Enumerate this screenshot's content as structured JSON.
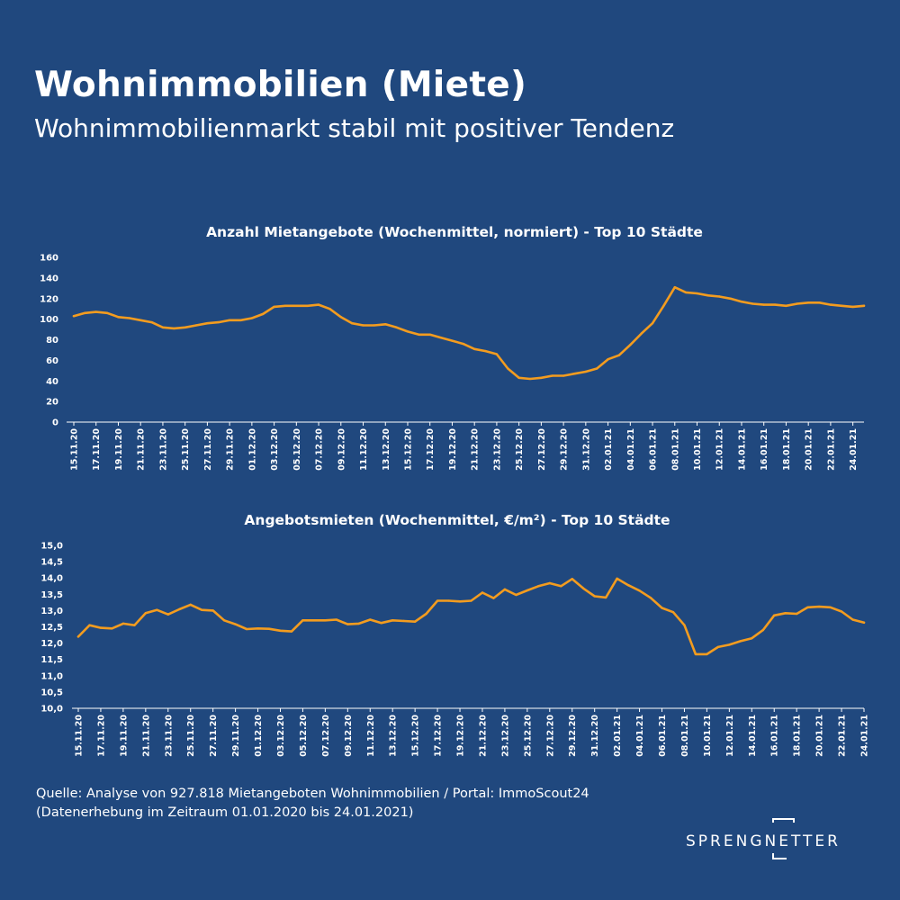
{
  "header": {
    "title": "Wohnimmobilien (Miete)",
    "subtitle": "Wohnimmobilienmarkt stabil mit positiver Tendenz"
  },
  "footer": {
    "source_line1": "Quelle: Analyse von 927.818 Mietangeboten Wohnimmobilien / Portal: ImmoScout24",
    "source_line2": "(Datenerhebung im Zeitraum 01.01.2020 bis  24.01.2021)"
  },
  "logo": {
    "text": "SPRENGNETTER"
  },
  "colors": {
    "background": "#20487e",
    "line": "#f39c1f",
    "text": "#ffffff"
  },
  "chart_data": [
    {
      "type": "line",
      "title": "Anzahl Mietangebote (Wochenmittel, normiert) - Top 10 Städte",
      "ylim": [
        0,
        160
      ],
      "yticks": [
        "0",
        "20",
        "40",
        "60",
        "80",
        "100",
        "120",
        "140",
        "160"
      ],
      "ytick_values": [
        0,
        20,
        40,
        60,
        80,
        100,
        120,
        140,
        160
      ],
      "xticks": [
        "15.11.20",
        "17.11.20",
        "19.11.20",
        "21.11.20",
        "23.11.20",
        "25.11.20",
        "27.11.20",
        "29.11.20",
        "01.12.20",
        "03.12.20",
        "05.12.20",
        "07.12.20",
        "09.12.20",
        "11.12.20",
        "13.12.20",
        "15.12.20",
        "17.12.20",
        "19.12.20",
        "21.12.20",
        "23.12.20",
        "25.12.20",
        "27.12.20",
        "29.12.20",
        "31.12.20",
        "02.01.21",
        "04.01.21",
        "06.01.21",
        "08.01.21",
        "10.01.21",
        "12.01.21",
        "14.01.21",
        "16.01.21",
        "18.01.21",
        "20.01.21",
        "22.01.21",
        "24.01.21"
      ],
      "series": [
        {
          "values": [
            103,
            106,
            107,
            106,
            102,
            101,
            99,
            97,
            92,
            91,
            92,
            94,
            96,
            97,
            99,
            99,
            101,
            105,
            112,
            113,
            113,
            113,
            114,
            110,
            102,
            96,
            94,
            94,
            95,
            92,
            88,
            85,
            85,
            82,
            79,
            76,
            71,
            69,
            66,
            52,
            43,
            42,
            43,
            45,
            45,
            47,
            49,
            52,
            61,
            65,
            75,
            86,
            96,
            113,
            131,
            126,
            125,
            123,
            122,
            120,
            117,
            115,
            114,
            114,
            113,
            115,
            116,
            116,
            114,
            113,
            112,
            113
          ]
        }
      ]
    },
    {
      "type": "line",
      "title": "Angebotsmieten (Wochenmittel, €/m²) - Top 10 Städte",
      "ylim": [
        10.0,
        15.0
      ],
      "yticks": [
        "10,0",
        "10,5",
        "11,0",
        "11,5",
        "12,0",
        "12,5",
        "13,0",
        "13,5",
        "14,0",
        "14,5",
        "15,0"
      ],
      "ytick_values": [
        10.0,
        10.5,
        11.0,
        11.5,
        12.0,
        12.5,
        13.0,
        13.5,
        14.0,
        14.5,
        15.0
      ],
      "xticks": [
        "15.11.20",
        "17.11.20",
        "19.11.20",
        "21.11.20",
        "23.11.20",
        "25.11.20",
        "27.11.20",
        "29.11.20",
        "01.12.20",
        "03.12.20",
        "05.12.20",
        "07.12.20",
        "09.12.20",
        "11.12.20",
        "13.12.20",
        "15.12.20",
        "17.12.20",
        "19.12.20",
        "21.12.20",
        "23.12.20",
        "25.12.20",
        "27.12.20",
        "29.12.20",
        "31.12.20",
        "02.01.21",
        "04.01.21",
        "06.01.21",
        "08.01.21",
        "10.01.21",
        "12.01.21",
        "14.01.21",
        "16.01.21",
        "18.01.21",
        "20.01.21",
        "22.01.21",
        "24.01.21"
      ],
      "series": [
        {
          "values": [
            12.2,
            12.55,
            12.47,
            12.45,
            12.6,
            12.55,
            12.92,
            13.02,
            12.88,
            13.04,
            13.18,
            13.02,
            13.0,
            12.7,
            12.58,
            12.43,
            12.45,
            12.44,
            12.38,
            12.36,
            12.7,
            12.7,
            12.7,
            12.72,
            12.58,
            12.6,
            12.72,
            12.62,
            12.7,
            12.68,
            12.66,
            12.9,
            13.3,
            13.3,
            13.28,
            13.3,
            13.55,
            13.38,
            13.65,
            13.48,
            13.62,
            13.75,
            13.84,
            13.75,
            13.97,
            13.68,
            13.44,
            13.4,
            13.98,
            13.78,
            13.61,
            13.39,
            13.08,
            12.95,
            12.55,
            11.66,
            11.66,
            11.88,
            11.95,
            12.06,
            12.15,
            12.4,
            12.85,
            12.92,
            12.9,
            13.1,
            13.12,
            13.1,
            12.97,
            12.72,
            12.63
          ]
        }
      ]
    }
  ]
}
